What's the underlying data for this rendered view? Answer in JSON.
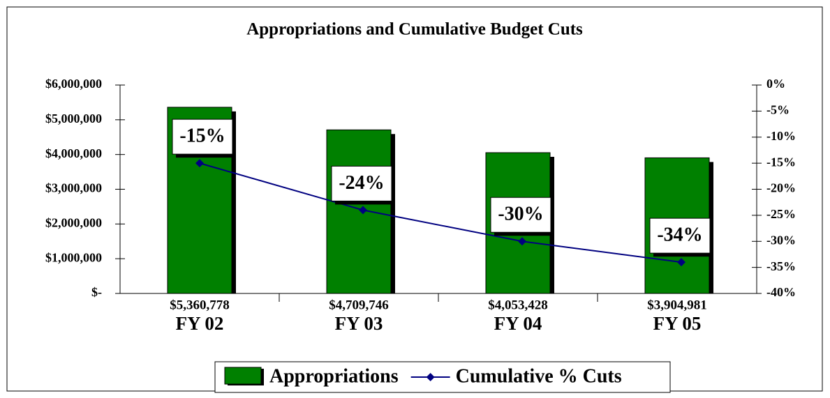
{
  "chart_data": {
    "type": "bar",
    "title": "Appropriations and Cumulative Budget Cuts",
    "categories": [
      "FY 02",
      "FY 03",
      "FY 04",
      "FY 05"
    ],
    "series": [
      {
        "name": "Appropriations",
        "type": "bar",
        "color": "#008000",
        "values": [
          5360778,
          4709746,
          4053428,
          3904981
        ],
        "value_labels": [
          "$5,360,778",
          "$4,709,746",
          "$4,053,428",
          "$3,904,981"
        ]
      },
      {
        "name": "Cumulative % Cuts",
        "type": "line",
        "axis": "y2",
        "color": "#000080",
        "values": [
          -15,
          -24,
          -30,
          -34
        ],
        "value_labels": [
          "-15%",
          "-24%",
          "-30%",
          "-34%"
        ]
      }
    ],
    "ylim": [
      0,
      6000000
    ],
    "yticks": [
      {
        "value": 0,
        "label": "$-"
      },
      {
        "value": 1000000,
        "label": "$1,000,000"
      },
      {
        "value": 2000000,
        "label": "$2,000,000"
      },
      {
        "value": 3000000,
        "label": "$3,000,000"
      },
      {
        "value": 4000000,
        "label": "$4,000,000"
      },
      {
        "value": 5000000,
        "label": "$5,000,000"
      },
      {
        "value": 6000000,
        "label": "$6,000,000"
      }
    ],
    "y2lim": [
      -40,
      0
    ],
    "y2ticks": [
      {
        "value": -40,
        "label": "-40%"
      },
      {
        "value": -35,
        "label": "-35%"
      },
      {
        "value": -30,
        "label": "-30%"
      },
      {
        "value": -25,
        "label": "-25%"
      },
      {
        "value": -20,
        "label": "-20%"
      },
      {
        "value": -15,
        "label": "-15%"
      },
      {
        "value": -10,
        "label": "-10%"
      },
      {
        "value": -5,
        "label": "-5%"
      },
      {
        "value": 0,
        "label": "0%"
      }
    ],
    "grid": false,
    "legend": "bottom"
  }
}
